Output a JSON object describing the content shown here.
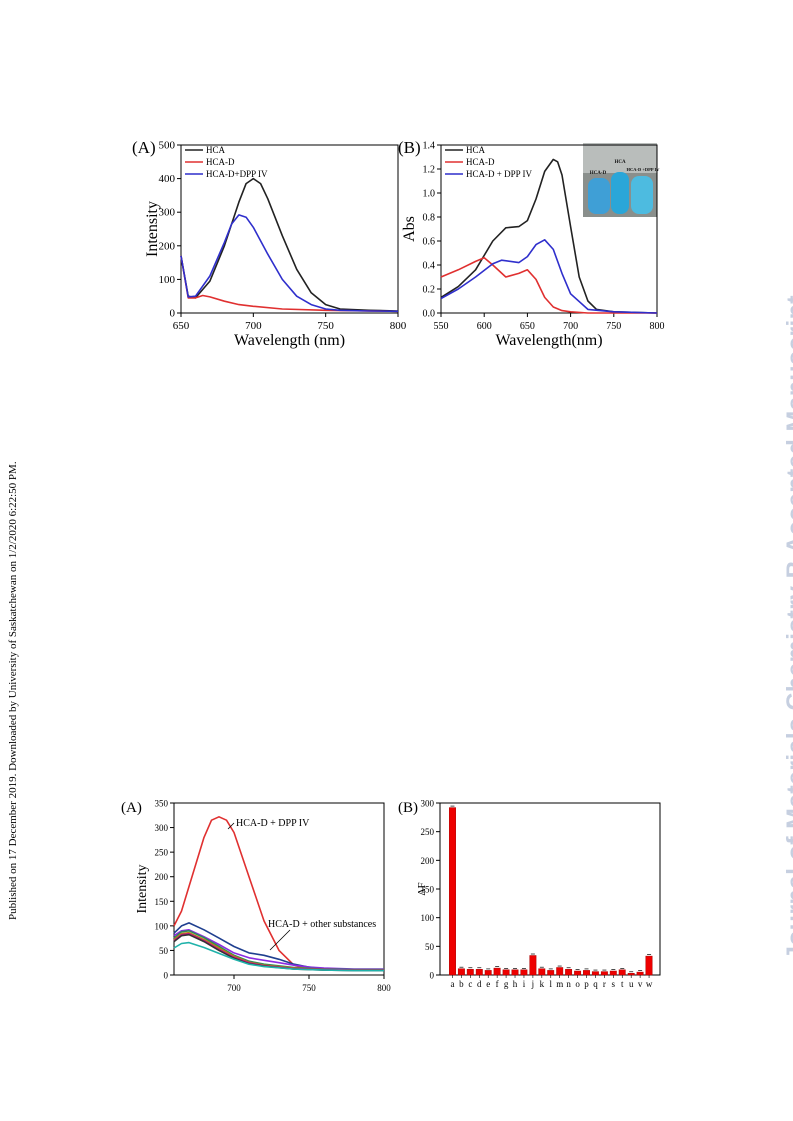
{
  "side_note": "Published on 17 December 2019. Downloaded by University of Saskatchewan on 1/2/2020 6:22:50 PM.",
  "watermark": "Journal of Materials Chemistry B Accepted Manuscript",
  "photo_labels": [
    "HCA-D",
    "HCA",
    "HCA-D +DPP IV"
  ],
  "chart_data": [
    {
      "panel": "(A)",
      "type": "line",
      "xlabel": "Wavelength (nm)",
      "ylabel": "Intensity",
      "xlim": [
        650,
        800
      ],
      "ylim": [
        0,
        500
      ],
      "xticks": [
        650,
        700,
        750,
        800
      ],
      "yticks": [
        0,
        100,
        200,
        300,
        400,
        500
      ],
      "legend_position": "top-left",
      "series": [
        {
          "name": "HCA",
          "color": "#222222",
          "x": [
            650,
            655,
            660,
            670,
            680,
            690,
            695,
            700,
            705,
            710,
            720,
            730,
            740,
            750,
            760,
            780,
            800
          ],
          "y": [
            170,
            50,
            45,
            95,
            200,
            330,
            385,
            400,
            385,
            340,
            230,
            130,
            60,
            25,
            12,
            8,
            6
          ]
        },
        {
          "name": "HCA-D",
          "color": "#e03030",
          "x": [
            650,
            655,
            660,
            665,
            670,
            680,
            690,
            700,
            720,
            750,
            780,
            800
          ],
          "y": [
            170,
            45,
            45,
            52,
            48,
            35,
            25,
            20,
            12,
            8,
            6,
            5
          ]
        },
        {
          "name": "HCA-D+DPP IV",
          "color": "#2f2fcc",
          "x": [
            650,
            655,
            660,
            670,
            680,
            685,
            690,
            695,
            700,
            710,
            720,
            730,
            740,
            750,
            760,
            780,
            800
          ],
          "y": [
            170,
            48,
            50,
            110,
            210,
            265,
            292,
            285,
            255,
            175,
            100,
            50,
            25,
            12,
            8,
            6,
            5
          ]
        }
      ]
    },
    {
      "panel": "(B)",
      "type": "line",
      "xlabel": "Wavelength(nm)",
      "ylabel": "Abs",
      "xlim": [
        550,
        800
      ],
      "ylim": [
        0,
        1.4
      ],
      "xticks": [
        550,
        600,
        650,
        700,
        750,
        800
      ],
      "yticks": [
        0.0,
        0.2,
        0.4,
        0.6,
        0.8,
        1.0,
        1.2,
        1.4
      ],
      "legend_position": "top-left",
      "series": [
        {
          "name": "HCA",
          "color": "#222222",
          "x": [
            550,
            570,
            590,
            610,
            625,
            640,
            650,
            660,
            670,
            680,
            685,
            690,
            700,
            710,
            720,
            730,
            750,
            800
          ],
          "y": [
            0.13,
            0.22,
            0.36,
            0.6,
            0.71,
            0.72,
            0.77,
            0.95,
            1.18,
            1.28,
            1.26,
            1.15,
            0.72,
            0.3,
            0.1,
            0.03,
            0.01,
            0.0
          ]
        },
        {
          "name": "HCA-D",
          "color": "#e03030",
          "x": [
            550,
            570,
            590,
            600,
            610,
            625,
            640,
            650,
            660,
            670,
            680,
            690,
            700,
            720,
            750,
            800
          ],
          "y": [
            0.3,
            0.36,
            0.43,
            0.46,
            0.4,
            0.3,
            0.33,
            0.36,
            0.28,
            0.13,
            0.05,
            0.02,
            0.01,
            0.0,
            0.0,
            0.0
          ]
        },
        {
          "name": "HCA-D + DPP IV",
          "color": "#2f2fcc",
          "x": [
            550,
            570,
            590,
            610,
            620,
            640,
            650,
            660,
            670,
            680,
            690,
            700,
            720,
            750,
            800
          ],
          "y": [
            0.12,
            0.2,
            0.3,
            0.41,
            0.44,
            0.42,
            0.47,
            0.57,
            0.61,
            0.53,
            0.33,
            0.16,
            0.03,
            0.01,
            0.0
          ]
        }
      ]
    },
    {
      "panel": "(A)",
      "type": "line",
      "ylabel": "Intensity",
      "xlim": [
        660,
        800
      ],
      "ylim": [
        0,
        350
      ],
      "xticks": [
        700,
        750,
        800
      ],
      "yticks": [
        0,
        50,
        100,
        150,
        200,
        250,
        300,
        350
      ],
      "annotations": [
        "HCA-D + DPP IV",
        "HCA-D + other substances"
      ],
      "series": [
        {
          "color": "#e03030",
          "x": [
            660,
            665,
            670,
            680,
            685,
            690,
            695,
            700,
            710,
            720,
            730,
            740,
            750,
            760,
            780,
            800
          ],
          "y": [
            100,
            130,
            180,
            280,
            315,
            322,
            315,
            290,
            200,
            110,
            50,
            20,
            12,
            10,
            10,
            10
          ]
        },
        {
          "color": "#1f3f8f",
          "x": [
            660,
            665,
            670,
            680,
            690,
            700,
            710,
            720,
            730,
            740,
            750,
            760,
            770,
            780,
            800
          ],
          "y": [
            85,
            100,
            106,
            92,
            75,
            58,
            45,
            40,
            32,
            22,
            16,
            12,
            11,
            11,
            11
          ]
        },
        {
          "color": "#8a2be2",
          "x": [
            660,
            665,
            670,
            680,
            690,
            700,
            710,
            720,
            730,
            740,
            750,
            760,
            770,
            780,
            800
          ],
          "y": [
            80,
            90,
            92,
            78,
            62,
            45,
            35,
            30,
            25,
            20,
            16,
            14,
            13,
            12,
            12
          ]
        },
        {
          "color": "#2e8b57",
          "x": [
            660,
            665,
            670,
            680,
            690,
            700,
            710,
            720,
            740,
            760,
            780,
            800
          ],
          "y": [
            75,
            88,
            90,
            76,
            58,
            40,
            28,
            22,
            15,
            12,
            11,
            11
          ]
        },
        {
          "color": "#b8860b",
          "x": [
            660,
            665,
            670,
            680,
            690,
            700,
            710,
            720,
            740,
            760,
            780,
            800
          ],
          "y": [
            72,
            84,
            86,
            72,
            55,
            38,
            26,
            20,
            14,
            11,
            10,
            10
          ]
        },
        {
          "color": "#c71585",
          "x": [
            660,
            665,
            670,
            680,
            690,
            700,
            710,
            720,
            740,
            760,
            780,
            800
          ],
          "y": [
            70,
            82,
            84,
            70,
            52,
            36,
            25,
            19,
            13,
            11,
            10,
            10
          ]
        },
        {
          "color": "#333333",
          "x": [
            660,
            665,
            670,
            680,
            690,
            700,
            710,
            720,
            740,
            760,
            780,
            800
          ],
          "y": [
            68,
            80,
            82,
            68,
            50,
            34,
            23,
            18,
            12,
            10,
            9,
            9
          ]
        },
        {
          "color": "#20b2aa",
          "x": [
            660,
            665,
            670,
            680,
            690,
            700,
            710,
            720,
            740,
            760,
            780,
            800
          ],
          "y": [
            55,
            64,
            66,
            56,
            44,
            32,
            22,
            17,
            12,
            10,
            9,
            9
          ]
        }
      ]
    },
    {
      "panel": "(B)",
      "type": "bar",
      "ylabel": "ΔF",
      "ylim": [
        0,
        300
      ],
      "yticks": [
        0,
        50,
        100,
        150,
        200,
        250,
        300
      ],
      "color": "#ee0000",
      "categories": [
        "a",
        "b",
        "c",
        "d",
        "e",
        "f",
        "g",
        "h",
        "i",
        "j",
        "k",
        "l",
        "m",
        "n",
        "o",
        "p",
        "q",
        "r",
        "s",
        "t",
        "u",
        "v",
        "w"
      ],
      "values": [
        292,
        11,
        10,
        10,
        8,
        12,
        9,
        9,
        9,
        34,
        11,
        8,
        13,
        10,
        7,
        8,
        6,
        6,
        7,
        9,
        3,
        5,
        33
      ]
    }
  ]
}
